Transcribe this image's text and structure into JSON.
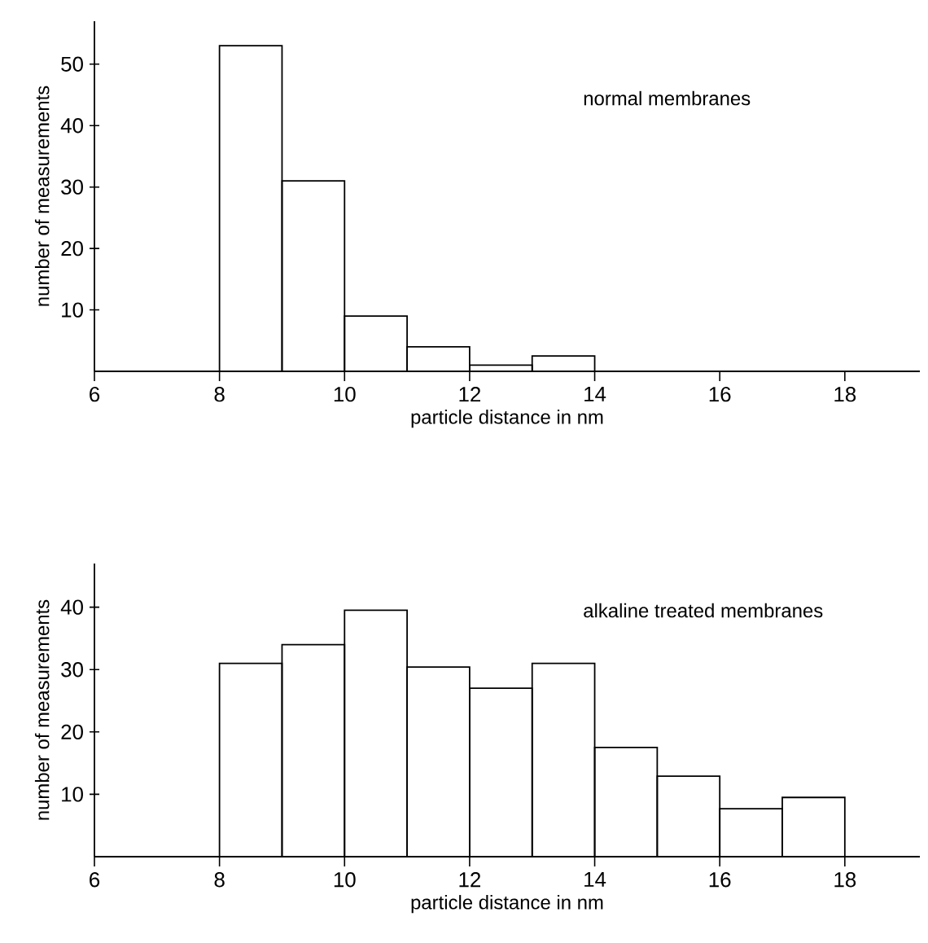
{
  "chart_data": [
    {
      "type": "histogram",
      "xlabel": "particle distance in nm",
      "ylabel": "number of measurements",
      "annotations": [
        "normal membranes"
      ],
      "bins": [
        8,
        9,
        10,
        11,
        12,
        13,
        14
      ],
      "values": [
        53,
        31,
        9,
        4,
        1,
        2.5
      ],
      "color": "#000000",
      "xlim": [
        6,
        19.2
      ],
      "ylim": [
        0,
        57
      ],
      "xticks": [
        6,
        8,
        10,
        12,
        14,
        16,
        18
      ],
      "yticks": [
        10,
        20,
        30,
        40,
        50
      ],
      "grid": false
    },
    {
      "type": "histogram",
      "xlabel": "particle distance in nm",
      "ylabel": "number of measurements",
      "annotations": [
        "alkaline treated membranes"
      ],
      "bins": [
        8,
        9,
        10,
        11,
        12,
        13,
        14,
        15,
        16,
        17,
        18
      ],
      "values": [
        31,
        34,
        39.5,
        30.4,
        27,
        31,
        17.5,
        12.9,
        7.7,
        9.5
      ],
      "color": "#000000",
      "xlim": [
        6,
        19.2
      ],
      "ylim": [
        0,
        47
      ],
      "xticks": [
        6,
        8,
        10,
        12,
        14,
        16,
        18
      ],
      "yticks": [
        10,
        20,
        30,
        40
      ],
      "grid": false
    }
  ]
}
